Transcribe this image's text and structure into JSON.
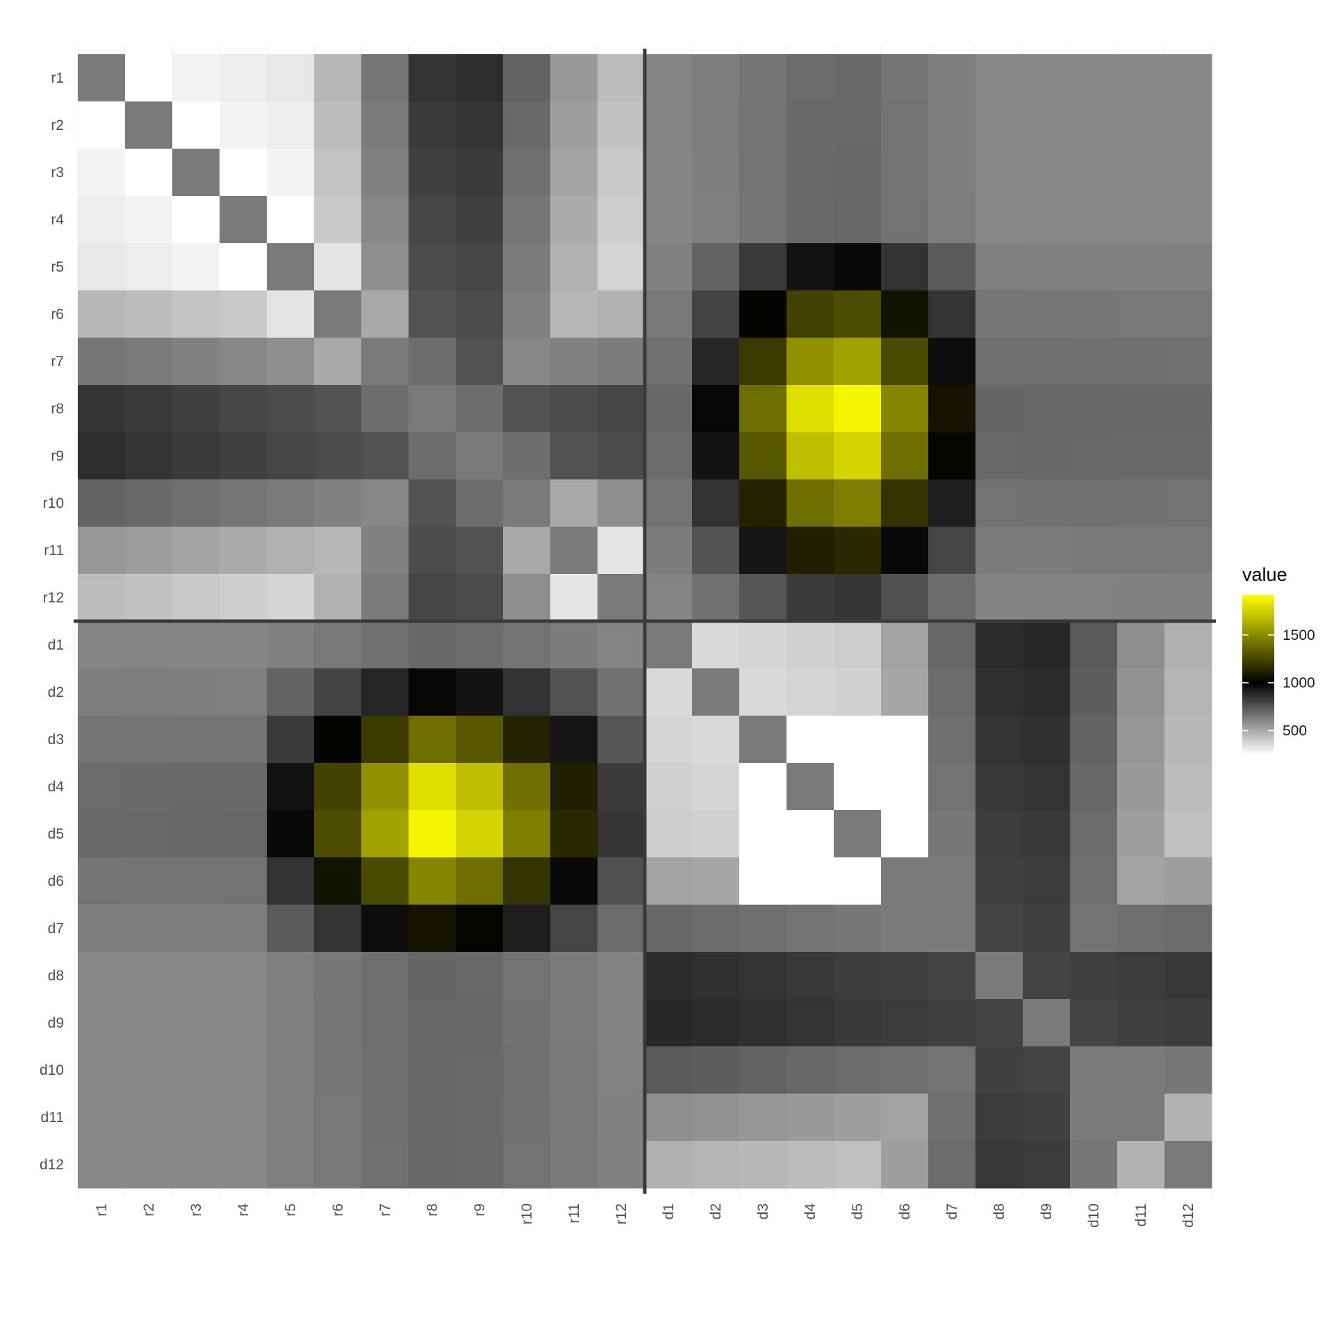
{
  "chart_data": {
    "type": "heatmap",
    "title": "",
    "xlabel": "",
    "ylabel": "",
    "rows": [
      "r1",
      "r2",
      "r3",
      "r4",
      "r5",
      "r6",
      "r7",
      "r8",
      "r9",
      "r10",
      "r11",
      "r12",
      "d1",
      "d2",
      "d3",
      "d4",
      "d5",
      "d6",
      "d7",
      "d8",
      "d9",
      "d10",
      "d11",
      "d12"
    ],
    "cols": [
      "r1",
      "r2",
      "r3",
      "r4",
      "r5",
      "r6",
      "r7",
      "r8",
      "r9",
      "r10",
      "r11",
      "r12",
      "d1",
      "d2",
      "d3",
      "d4",
      "d5",
      "d6",
      "d7",
      "d8",
      "d9",
      "d10",
      "d11",
      "d12"
    ],
    "gradient_profile": [
      1,
      0.8,
      0.6,
      0.45,
      0.35,
      0.25,
      0.2,
      0.15,
      0.12,
      0.1,
      0.05,
      0.02
    ],
    "legend": {
      "title": "value",
      "breaks": [
        500,
        1000,
        1500
      ],
      "breaks_labels": [
        "500",
        "1000",
        "1500"
      ],
      "range": [
        250,
        1920
      ],
      "colors": [
        "#ffffff",
        "#000000",
        "#ffff00"
      ],
      "placement": "right"
    },
    "group_dividers": [
      "between r12 and d1 (rows)",
      "between r12 and d1 (columns)"
    ],
    "grid": true
  }
}
